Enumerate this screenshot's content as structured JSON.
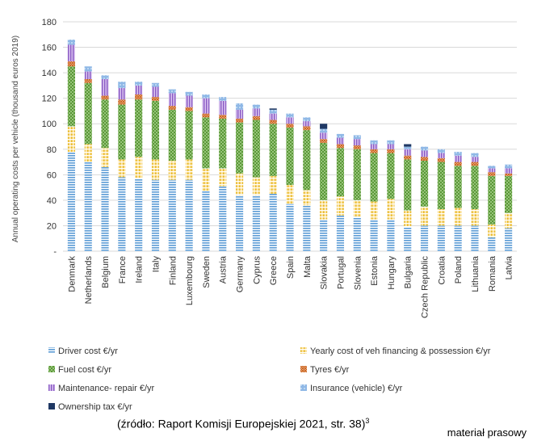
{
  "chart_data": {
    "type": "bar",
    "stacked": true,
    "ylabel": "Annual operating costs per vehicle (thousand euros 2019)",
    "ylim": [
      0,
      180
    ],
    "yticks": [
      "-",
      "20",
      "40",
      "60",
      "80",
      "100",
      "120",
      "140",
      "160",
      "180"
    ],
    "grid": true,
    "legend_position": "bottom",
    "categories": [
      "Denmark",
      "Netherlands",
      "Belgium",
      "France",
      "Ireland",
      "Italy",
      "Finland",
      "Luxembourg",
      "Sweden",
      "Austria",
      "Germany",
      "Cyprus",
      "Greece",
      "Spain",
      "Malta",
      "Slovakia",
      "Portugal",
      "Slovenia",
      "Estonia",
      "Hungary",
      "Bulgaria",
      "Czech Republic",
      "Croatia",
      "Poland",
      "Lithuania",
      "Romania",
      "Latvia"
    ],
    "series": [
      {
        "name": "Driver cost €/yr",
        "color": "#5b9bd5",
        "values": [
          78,
          70,
          66,
          58,
          57,
          56,
          56,
          56,
          47,
          51,
          44,
          44,
          45,
          37,
          36,
          25,
          28,
          27,
          25,
          25,
          19,
          20,
          20,
          20,
          20,
          11,
          18
        ]
      },
      {
        "name": "Yearly cost of veh financing & possession €/yr",
        "color": "#f4c94a",
        "values": [
          20,
          14,
          15,
          14,
          17,
          16,
          15,
          16,
          18,
          14,
          17,
          14,
          14,
          15,
          12,
          15,
          15,
          13,
          14,
          16,
          13,
          15,
          13,
          14,
          13,
          10,
          12
        ]
      },
      {
        "name": "Fuel cost €/yr",
        "color": "#70ad47",
        "values": [
          47,
          48,
          38,
          43,
          45,
          46,
          40,
          38,
          40,
          39,
          40,
          45,
          41,
          45,
          47,
          45,
          38,
          40,
          38,
          36,
          40,
          36,
          37,
          33,
          34,
          38,
          29
        ]
      },
      {
        "name": "Tyres €/yr",
        "color": "#ed7d31",
        "values": [
          4,
          3,
          3,
          4,
          4,
          3,
          3,
          3,
          3,
          3,
          3,
          3,
          3,
          3,
          3,
          3,
          3,
          3,
          3,
          3,
          3,
          3,
          3,
          3,
          3,
          3,
          2
        ]
      },
      {
        "name": "Maintenance- repair €/yr",
        "color": "#9966cc",
        "values": [
          13,
          6,
          13,
          9,
          7,
          8,
          10,
          9,
          12,
          11,
          7,
          6,
          5,
          5,
          4,
          5,
          5,
          5,
          4,
          4,
          5,
          5,
          4,
          5,
          4,
          3,
          4
        ]
      },
      {
        "name": "Insurance (vehicle) €/yr",
        "color": "#5b9bd5",
        "values": [
          4,
          4,
          3,
          5,
          3,
          3,
          3,
          3,
          3,
          3,
          5,
          3,
          3,
          3,
          3,
          3,
          3,
          3,
          3,
          3,
          2,
          3,
          3,
          3,
          3,
          2,
          3
        ]
      },
      {
        "name": "Ownership tax €/yr",
        "color": "#1f3864",
        "values": [
          0,
          0,
          0,
          0,
          0,
          0,
          0,
          0,
          0,
          0,
          0,
          0,
          1,
          0,
          0,
          4,
          0,
          0,
          0,
          0,
          2,
          0,
          0,
          0,
          0,
          0,
          0
        ]
      }
    ]
  },
  "caption": {
    "source": "(źródło: Raport Komisji Europejskiej 2021, str. 38)",
    "footnote": "3",
    "credit": "materiał prasowy"
  }
}
